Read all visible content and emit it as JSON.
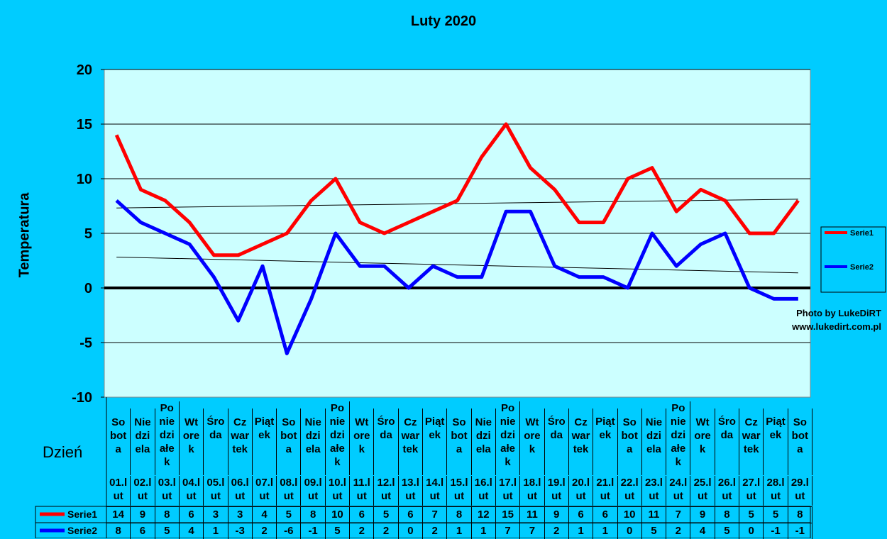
{
  "chart_data": {
    "type": "line",
    "title": "Luty 2020",
    "xlabel": "Dzień",
    "ylabel": "Temperatura",
    "ylim": [
      -10,
      20
    ],
    "yticks": [
      "20",
      "15",
      "10",
      "5",
      "0",
      "-5",
      "-10"
    ],
    "grid": true,
    "legend_placement": "right",
    "categories_day": [
      "So\nbot\na",
      "Nie\ndzi\nela",
      "Po\nnie\ndzi\nałe\nk",
      "Wt\nore\nk",
      "Śro\nda",
      "Cz\nwar\ntek",
      "Piąt\nek",
      "So\nbot\na",
      "Nie\ndzi\nela",
      "Po\nnie\ndzi\nałe\nk",
      "Wt\nore\nk",
      "Śro\nda",
      "Cz\nwar\ntek",
      "Piąt\nek",
      "So\nbot\na",
      "Nie\ndzi\nela",
      "Po\nnie\ndzi\nałe\nk",
      "Wt\nore\nk",
      "Śro\nda",
      "Cz\nwar\ntek",
      "Piąt\nek",
      "So\nbot\na",
      "Nie\ndzi\nela",
      "Po\nnie\ndzi\nałe\nk",
      "Wt\nore\nk",
      "Śro\nda",
      "Cz\nwar\ntek",
      "Piąt\nek",
      "So\nbot\na"
    ],
    "categories_date": [
      "01.l\nut",
      "02.l\nut",
      "03.l\nut",
      "04.l\nut",
      "05.l\nut",
      "06.l\nut",
      "07.l\nut",
      "08.l\nut",
      "09.l\nut",
      "10.l\nut",
      "11.l\nut",
      "12.l\nut",
      "13.l\nut",
      "14.l\nut",
      "15.l\nut",
      "16.l\nut",
      "17.l\nut",
      "18.l\nut",
      "19.l\nut",
      "20.l\nut",
      "21.l\nut",
      "22.l\nut",
      "23.l\nut",
      "24.l\nut",
      "25.l\nut",
      "26.l\nut",
      "27.l\nut",
      "28.l\nut",
      "29.l\nut"
    ],
    "series": [
      {
        "name": "Serie1",
        "color": "#ff0000",
        "values": [
          14,
          9,
          8,
          6,
          3,
          3,
          4,
          5,
          8,
          10,
          6,
          5,
          6,
          7,
          8,
          12,
          15,
          11,
          9,
          6,
          6,
          10,
          11,
          7,
          9,
          8,
          5,
          5,
          8
        ]
      },
      {
        "name": "Serie2",
        "color": "#0000ff",
        "values": [
          8,
          6,
          5,
          4,
          1,
          -3,
          2,
          -6,
          -1,
          5,
          2,
          2,
          0,
          2,
          1,
          1,
          7,
          7,
          2,
          1,
          1,
          0,
          5,
          2,
          4,
          5,
          0,
          -1,
          -1
        ]
      }
    ],
    "trendlines": "linear"
  },
  "credit": {
    "line1": "Photo by LukeDiRT",
    "line2": "www.lukedirt.com.pl"
  }
}
